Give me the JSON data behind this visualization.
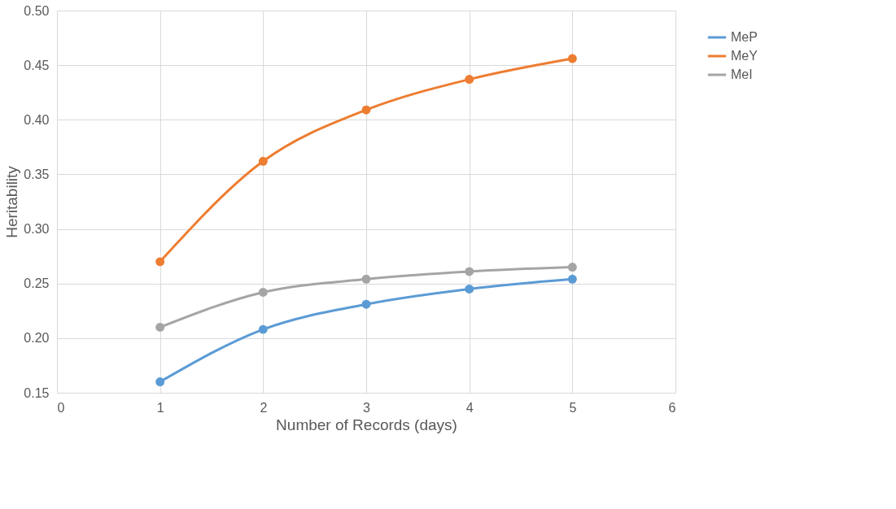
{
  "chart_data": {
    "type": "line",
    "xlabel": "Number of Records (days)",
    "ylabel": "Heritability",
    "x": [
      1,
      2,
      3,
      4,
      5
    ],
    "series": [
      {
        "name": "MeP",
        "color": "#5b9bd5",
        "values": [
          0.16,
          0.208,
          0.231,
          0.245,
          0.254
        ]
      },
      {
        "name": "MeY",
        "color": "#ed7d31",
        "values": [
          0.27,
          0.362,
          0.409,
          0.437,
          0.456
        ]
      },
      {
        "name": "MeI",
        "color": "#a5a5a5",
        "values": [
          0.21,
          0.242,
          0.254,
          0.261,
          0.265
        ]
      }
    ],
    "xlim": [
      0,
      6
    ],
    "xticks": [
      0,
      1,
      2,
      3,
      4,
      5,
      6
    ],
    "ylim": [
      0.15,
      0.5
    ],
    "yticks": [
      {
        "value": 0.15,
        "label": "0.15"
      },
      {
        "value": 0.2,
        "label": "0.20"
      },
      {
        "value": 0.25,
        "label": "0.25"
      },
      {
        "value": 0.3,
        "label": "0.30"
      },
      {
        "value": 0.35,
        "label": "0.35"
      },
      {
        "value": 0.4,
        "label": "0.40"
      },
      {
        "value": 0.45,
        "label": "0.45"
      },
      {
        "value": 0.5,
        "label": "0.50"
      }
    ],
    "grid": true,
    "legend": "right",
    "marker": "circle",
    "line_style": "solid"
  }
}
